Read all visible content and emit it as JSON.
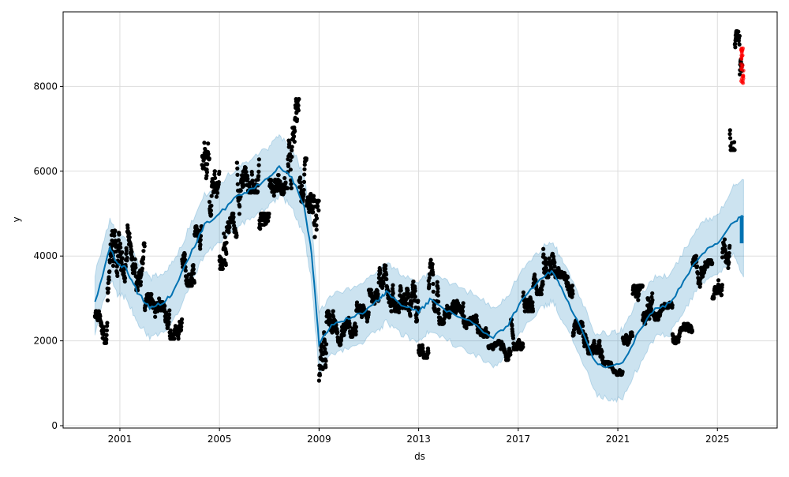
{
  "chart_data": {
    "type": "line",
    "title": "",
    "xlabel": "ds",
    "ylabel": "y",
    "xlim": [
      1998.72,
      2027.4
    ],
    "ylim": [
      -56,
      9758
    ],
    "grid": true,
    "x_ticks": [
      2001,
      2005,
      2009,
      2013,
      2017,
      2021,
      2025
    ],
    "x_tick_labels": [
      "2001",
      "2005",
      "2009",
      "2013",
      "2017",
      "2021",
      "2025"
    ],
    "y_ticks": [
      0,
      2000,
      4000,
      6000,
      8000
    ],
    "y_tick_labels": [
      "0",
      "2000",
      "4000",
      "6000",
      "8000"
    ],
    "colors": {
      "forecast": "#0072B2",
      "band": "#0072B2",
      "observed": "#000000",
      "highlight": "#ff0000",
      "grid": "#dddddd"
    },
    "forecast": {
      "x": [
        2000.0,
        2000.6,
        2000.9,
        2001.25,
        2001.7,
        2002.2,
        2002.7,
        2003.15,
        2003.8,
        2004.4,
        2005.0,
        2005.7,
        2006.3,
        2006.95,
        2007.4,
        2007.9,
        2008.4,
        2008.7,
        2009.0,
        2009.5,
        2010.1,
        2010.75,
        2011.4,
        2011.7,
        2012.3,
        2013.0,
        2013.45,
        2014.25,
        2015.2,
        2016.0,
        2016.6,
        2017.25,
        2018.0,
        2018.4,
        2018.8,
        2019.45,
        2020.1,
        2020.7,
        2021.2,
        2021.85,
        2022.5,
        2023.1,
        2023.75,
        2024.4,
        2025.0,
        2025.65,
        2026.05
      ],
      "yhat": [
        2890,
        4175,
        3800,
        3710,
        3150,
        2780,
        2870,
        3150,
        3990,
        4730,
        5010,
        5390,
        5570,
        5850,
        6130,
        5850,
        5200,
        4080,
        1940,
        2400,
        2500,
        2680,
        2960,
        3150,
        2870,
        2680,
        2960,
        2680,
        2400,
        2070,
        2400,
        3050,
        3520,
        3620,
        3150,
        2400,
        1470,
        1380,
        1470,
        2220,
        2780,
        2870,
        3520,
        4080,
        4270,
        4830,
        4920
      ],
      "yhat_lower": [
        2190,
        3475,
        3100,
        3010,
        2450,
        2080,
        2170,
        2450,
        3290,
        4030,
        4310,
        4690,
        4870,
        5150,
        5430,
        5150,
        4500,
        3380,
        1240,
        1700,
        1800,
        1980,
        2260,
        2450,
        2170,
        1980,
        2260,
        1980,
        1700,
        1370,
        1700,
        2350,
        2820,
        2920,
        2450,
        1700,
        770,
        580,
        670,
        1420,
        2080,
        2170,
        2820,
        3380,
        3570,
        4030,
        3500
      ],
      "yhat_upper": [
        3590,
        4875,
        4500,
        4410,
        3850,
        3480,
        3570,
        3850,
        4690,
        5430,
        5710,
        6090,
        6270,
        6550,
        6830,
        6550,
        5900,
        4780,
        2640,
        3100,
        3200,
        3380,
        3660,
        3850,
        3570,
        3380,
        3660,
        3380,
        3100,
        2770,
        3100,
        3750,
        4220,
        4320,
        3850,
        3100,
        2170,
        2180,
        2270,
        3020,
        3480,
        3570,
        4220,
        4780,
        4970,
        5630,
        5800
      ]
    },
    "forecast_future_range": {
      "x": [
        2025.9,
        2026.05
      ],
      "low": 4300,
      "high": 4920
    },
    "observed_ranges": {
      "x": [
        2000.0,
        2000.5,
        2001.0,
        2001.3,
        2001.6,
        2002.0,
        2002.5,
        2003.0,
        2003.5,
        2004.0,
        2004.3,
        2004.6,
        2005.0,
        2005.3,
        2005.7,
        2006.0,
        2006.3,
        2006.6,
        2007.0,
        2007.3,
        2007.6,
        2007.9,
        2008.2,
        2008.5,
        2008.8,
        2009.0,
        2009.3,
        2009.7,
        2010.0,
        2010.5,
        2011.0,
        2011.4,
        2011.8,
        2012.2,
        2012.6,
        2013.0,
        2013.4,
        2013.8,
        2014.3,
        2014.8,
        2015.3,
        2015.8,
        2016.3,
        2016.7,
        2017.2,
        2017.6,
        2018.0,
        2018.4,
        2018.8,
        2019.2,
        2019.6,
        2020.0,
        2020.4,
        2020.8,
        2021.2,
        2021.6,
        2022.0,
        2022.4,
        2022.8,
        2023.2,
        2023.6,
        2024.0,
        2024.4,
        2024.8,
        2025.2,
        2025.5,
        2025.7,
        2025.9
      ],
      "low": [
        1950,
        2900,
        3400,
        3600,
        3000,
        2300,
        2300,
        2050,
        3300,
        3900,
        4800,
        4700,
        3700,
        4300,
        4900,
        5500,
        5500,
        4000,
        4500,
        5200,
        5600,
        6000,
        5200,
        4700,
        2500,
        1000,
        1500,
        1900,
        2100,
        2300,
        2500,
        3000,
        2700,
        2300,
        2300,
        1600,
        2700,
        2400,
        2400,
        2300,
        2100,
        1800,
        1550,
        1800,
        2700,
        3100,
        3500,
        3500,
        2700,
        2100,
        1700,
        1300,
        1150,
        1200,
        1800,
        2400,
        2400,
        2500,
        2500,
        1800,
        2000,
        3100,
        3300,
        3000,
        3600,
        6500,
        8000,
        8000
      ],
      "high": [
        2700,
        4600,
        4700,
        5000,
        4300,
        3100,
        3100,
        2800,
        4300,
        4700,
        6700,
        6000,
        5800,
        5000,
        6200,
        6700,
        6600,
        5000,
        5800,
        6000,
        7800,
        7700,
        6300,
        5600,
        5300,
        2300,
        2700,
        2600,
        2800,
        3000,
        3200,
        4000,
        3800,
        3300,
        3400,
        2200,
        4100,
        3000,
        3000,
        2800,
        2600,
        2000,
        2000,
        2500,
        3600,
        3700,
        4700,
        4100,
        3600,
        2600,
        2400,
        2000,
        1500,
        1400,
        2200,
        3300,
        3500,
        2900,
        2900,
        2300,
        2400,
        4000,
        3900,
        3800,
        4600,
        7600,
        9300,
        8900
      ]
    },
    "highlighted_points": {
      "x_range": [
        2025.95,
        2026.05
      ],
      "low": 8050,
      "high": 8900
    }
  }
}
